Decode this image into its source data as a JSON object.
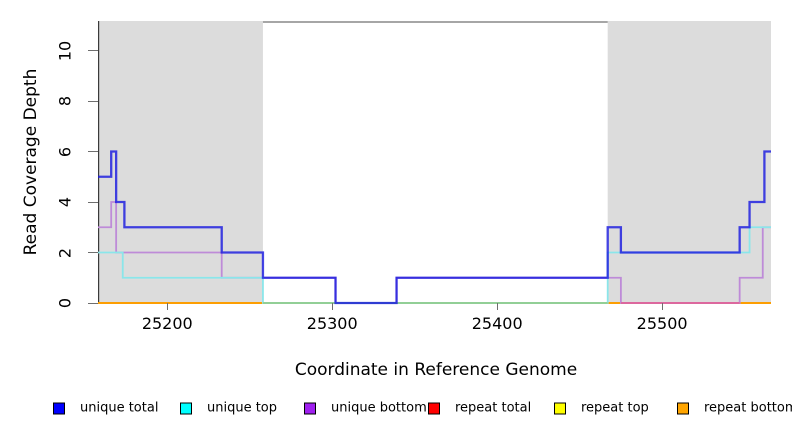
{
  "chart_data": {
    "type": "line",
    "subtype": "step-coverage-plot",
    "title": "",
    "xlabel": "Coordinate in Reference Genome",
    "ylabel": "Read Coverage Depth",
    "xlim": [
      25158,
      25566
    ],
    "ylim": [
      0,
      11.2
    ],
    "x_ticks": [
      25200,
      25300,
      25400,
      25500
    ],
    "y_ticks": [
      0,
      2,
      4,
      6,
      8,
      10
    ],
    "grid": false,
    "legend_position": "bottom",
    "shaded_regions": {
      "color": "#DCDCDC",
      "regions": [
        [
          25158,
          25258
        ],
        [
          25467,
          25566
        ]
      ]
    },
    "series": [
      {
        "name": "unique total",
        "legend_color": "#0000FF",
        "line_color": "#1616E0",
        "line_opacity": 0.8,
        "line_width": 2.3,
        "breakpoints": [
          25158,
          25166,
          25169,
          25174,
          25233,
          25258,
          25302,
          25339,
          25467,
          25475,
          25547,
          25553,
          25562,
          25566
        ],
        "values": [
          5,
          6,
          4,
          3,
          2,
          1,
          0,
          1,
          3,
          2,
          3,
          4,
          6
        ]
      },
      {
        "name": "unique top",
        "legend_color": "#00FFFF",
        "line_color": "#8AE6EA",
        "line_opacity": 1,
        "line_width": 1.8,
        "breakpoints": [
          25158,
          25173,
          25258,
          25467,
          25553,
          25566
        ],
        "values": [
          2,
          1,
          0,
          2,
          3
        ]
      },
      {
        "name": "unique bottom",
        "legend_color": "#A020F0",
        "line_color": "#BE8BD8",
        "line_opacity": 1,
        "line_width": 1.8,
        "breakpoints": [
          25158,
          25166,
          25169,
          25233,
          25302,
          25339,
          25475,
          25547,
          25561,
          25566
        ],
        "values": [
          3,
          4,
          2,
          1,
          0,
          1,
          0,
          1,
          3
        ]
      },
      {
        "name": "repeat total",
        "legend_color": "#FF0000",
        "line_color": "#DD2C2C",
        "line_opacity": 1,
        "line_width": 1.8,
        "breakpoints": [
          25158,
          25566
        ],
        "values": [
          0
        ]
      },
      {
        "name": "repeat top",
        "legend_color": "#FFFF00",
        "line_color": "#F0F000",
        "line_opacity": 1,
        "line_width": 1.8,
        "breakpoints": [
          25158,
          25566
        ],
        "values": [
          0
        ]
      },
      {
        "name": "repeat bottom",
        "legend_color": "#FFA500",
        "line_color": "#FF9800",
        "line_opacity": 1,
        "line_width": 1.8,
        "breakpoints": [
          25158,
          25566
        ],
        "values": [
          0
        ]
      }
    ],
    "overlap_baseline_segments": [
      {
        "from": 25258,
        "to": 25467,
        "value": 0,
        "color": "#8FCE92"
      },
      {
        "from": 25475,
        "to": 25547,
        "value": 0,
        "color": "#DE639D"
      }
    ],
    "legend": [
      {
        "label": "unique total",
        "color": "#0000FF"
      },
      {
        "label": "unique top",
        "color": "#00FFFF"
      },
      {
        "label": "unique bottom",
        "color": "#A020F0"
      },
      {
        "label": "repeat total",
        "color": "#FF0000"
      },
      {
        "label": "repeat top",
        "color": "#FFFF00"
      },
      {
        "label": "repeat bottom",
        "color": "#FFA500"
      }
    ]
  }
}
